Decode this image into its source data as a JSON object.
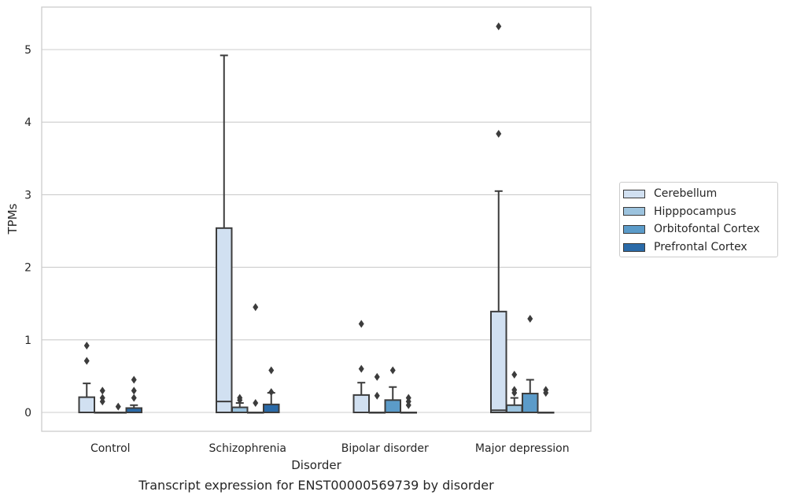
{
  "chart_data": {
    "type": "box",
    "title": "Transcript expression for ENST00000569739 by disorder",
    "xlabel": "Disorder",
    "ylabel": "TPMs",
    "ylim": [
      -0.25,
      5.6
    ],
    "yticks": [
      0,
      1,
      2,
      3,
      4,
      5
    ],
    "grid": "horizontal",
    "legend_position": "right",
    "categories": [
      "Control",
      "Schizophrenia",
      "Bipolar disorder",
      "Major depression"
    ],
    "series": [
      {
        "name": "Cerebellum",
        "color": "#d1e0f1",
        "boxes": [
          {
            "q1": 0.0,
            "median": 0.0,
            "q3": 0.21,
            "whisker_low": 0.0,
            "whisker_high": 0.4,
            "outliers": [
              0.71,
              0.92
            ]
          },
          {
            "q1": 0.0,
            "median": 0.15,
            "q3": 2.54,
            "whisker_low": 0.0,
            "whisker_high": 4.92,
            "outliers": []
          },
          {
            "q1": 0.0,
            "median": 0.0,
            "q3": 0.24,
            "whisker_low": 0.0,
            "whisker_high": 0.41,
            "outliers": [
              0.6,
              1.22
            ]
          },
          {
            "q1": 0.0,
            "median": 0.03,
            "q3": 1.39,
            "whisker_low": 0.0,
            "whisker_high": 3.05,
            "outliers": [
              3.84,
              5.32
            ]
          }
        ]
      },
      {
        "name": "Hipppocampus",
        "color": "#9cc3de",
        "boxes": [
          {
            "q1": 0.0,
            "median": 0.0,
            "q3": 0.0,
            "whisker_low": 0.0,
            "whisker_high": 0.0,
            "outliers": [
              0.15,
              0.2,
              0.3
            ]
          },
          {
            "q1": 0.0,
            "median": 0.0,
            "q3": 0.07,
            "whisker_low": 0.0,
            "whisker_high": 0.13,
            "outliers": [
              0.17,
              0.2
            ]
          },
          {
            "q1": 0.0,
            "median": 0.0,
            "q3": 0.0,
            "whisker_low": 0.0,
            "whisker_high": 0.0,
            "outliers": [
              0.23,
              0.49
            ]
          },
          {
            "q1": 0.0,
            "median": 0.0,
            "q3": 0.1,
            "whisker_low": 0.0,
            "whisker_high": 0.2,
            "outliers": [
              0.27,
              0.31,
              0.52
            ]
          }
        ]
      },
      {
        "name": "Orbitofontal Cortex",
        "color": "#5b9bc9",
        "boxes": [
          {
            "q1": 0.0,
            "median": 0.0,
            "q3": 0.0,
            "whisker_low": 0.0,
            "whisker_high": 0.0,
            "outliers": [
              0.08
            ]
          },
          {
            "q1": 0.0,
            "median": 0.0,
            "q3": 0.0,
            "whisker_low": 0.0,
            "whisker_high": 0.0,
            "outliers": [
              0.13,
              1.45
            ]
          },
          {
            "q1": 0.0,
            "median": 0.0,
            "q3": 0.17,
            "whisker_low": 0.0,
            "whisker_high": 0.35,
            "outliers": [
              0.58
            ]
          },
          {
            "q1": 0.0,
            "median": 0.0,
            "q3": 0.26,
            "whisker_low": 0.0,
            "whisker_high": 0.45,
            "outliers": [
              1.29
            ]
          }
        ]
      },
      {
        "name": "Prefrontal Cortex",
        "color": "#2a6aa8",
        "boxes": [
          {
            "q1": 0.0,
            "median": 0.0,
            "q3": 0.06,
            "whisker_low": 0.0,
            "whisker_high": 0.1,
            "outliers": [
              0.2,
              0.3,
              0.45
            ]
          },
          {
            "q1": 0.0,
            "median": 0.0,
            "q3": 0.11,
            "whisker_low": 0.0,
            "whisker_high": 0.27,
            "outliers": [
              0.28,
              0.58
            ]
          },
          {
            "q1": 0.0,
            "median": 0.0,
            "q3": 0.0,
            "whisker_low": 0.0,
            "whisker_high": 0.0,
            "outliers": [
              0.1,
              0.15,
              0.2
            ]
          },
          {
            "q1": 0.0,
            "median": 0.0,
            "q3": 0.0,
            "whisker_low": 0.0,
            "whisker_high": 0.0,
            "outliers": [
              0.27,
              0.31
            ]
          }
        ]
      }
    ]
  }
}
